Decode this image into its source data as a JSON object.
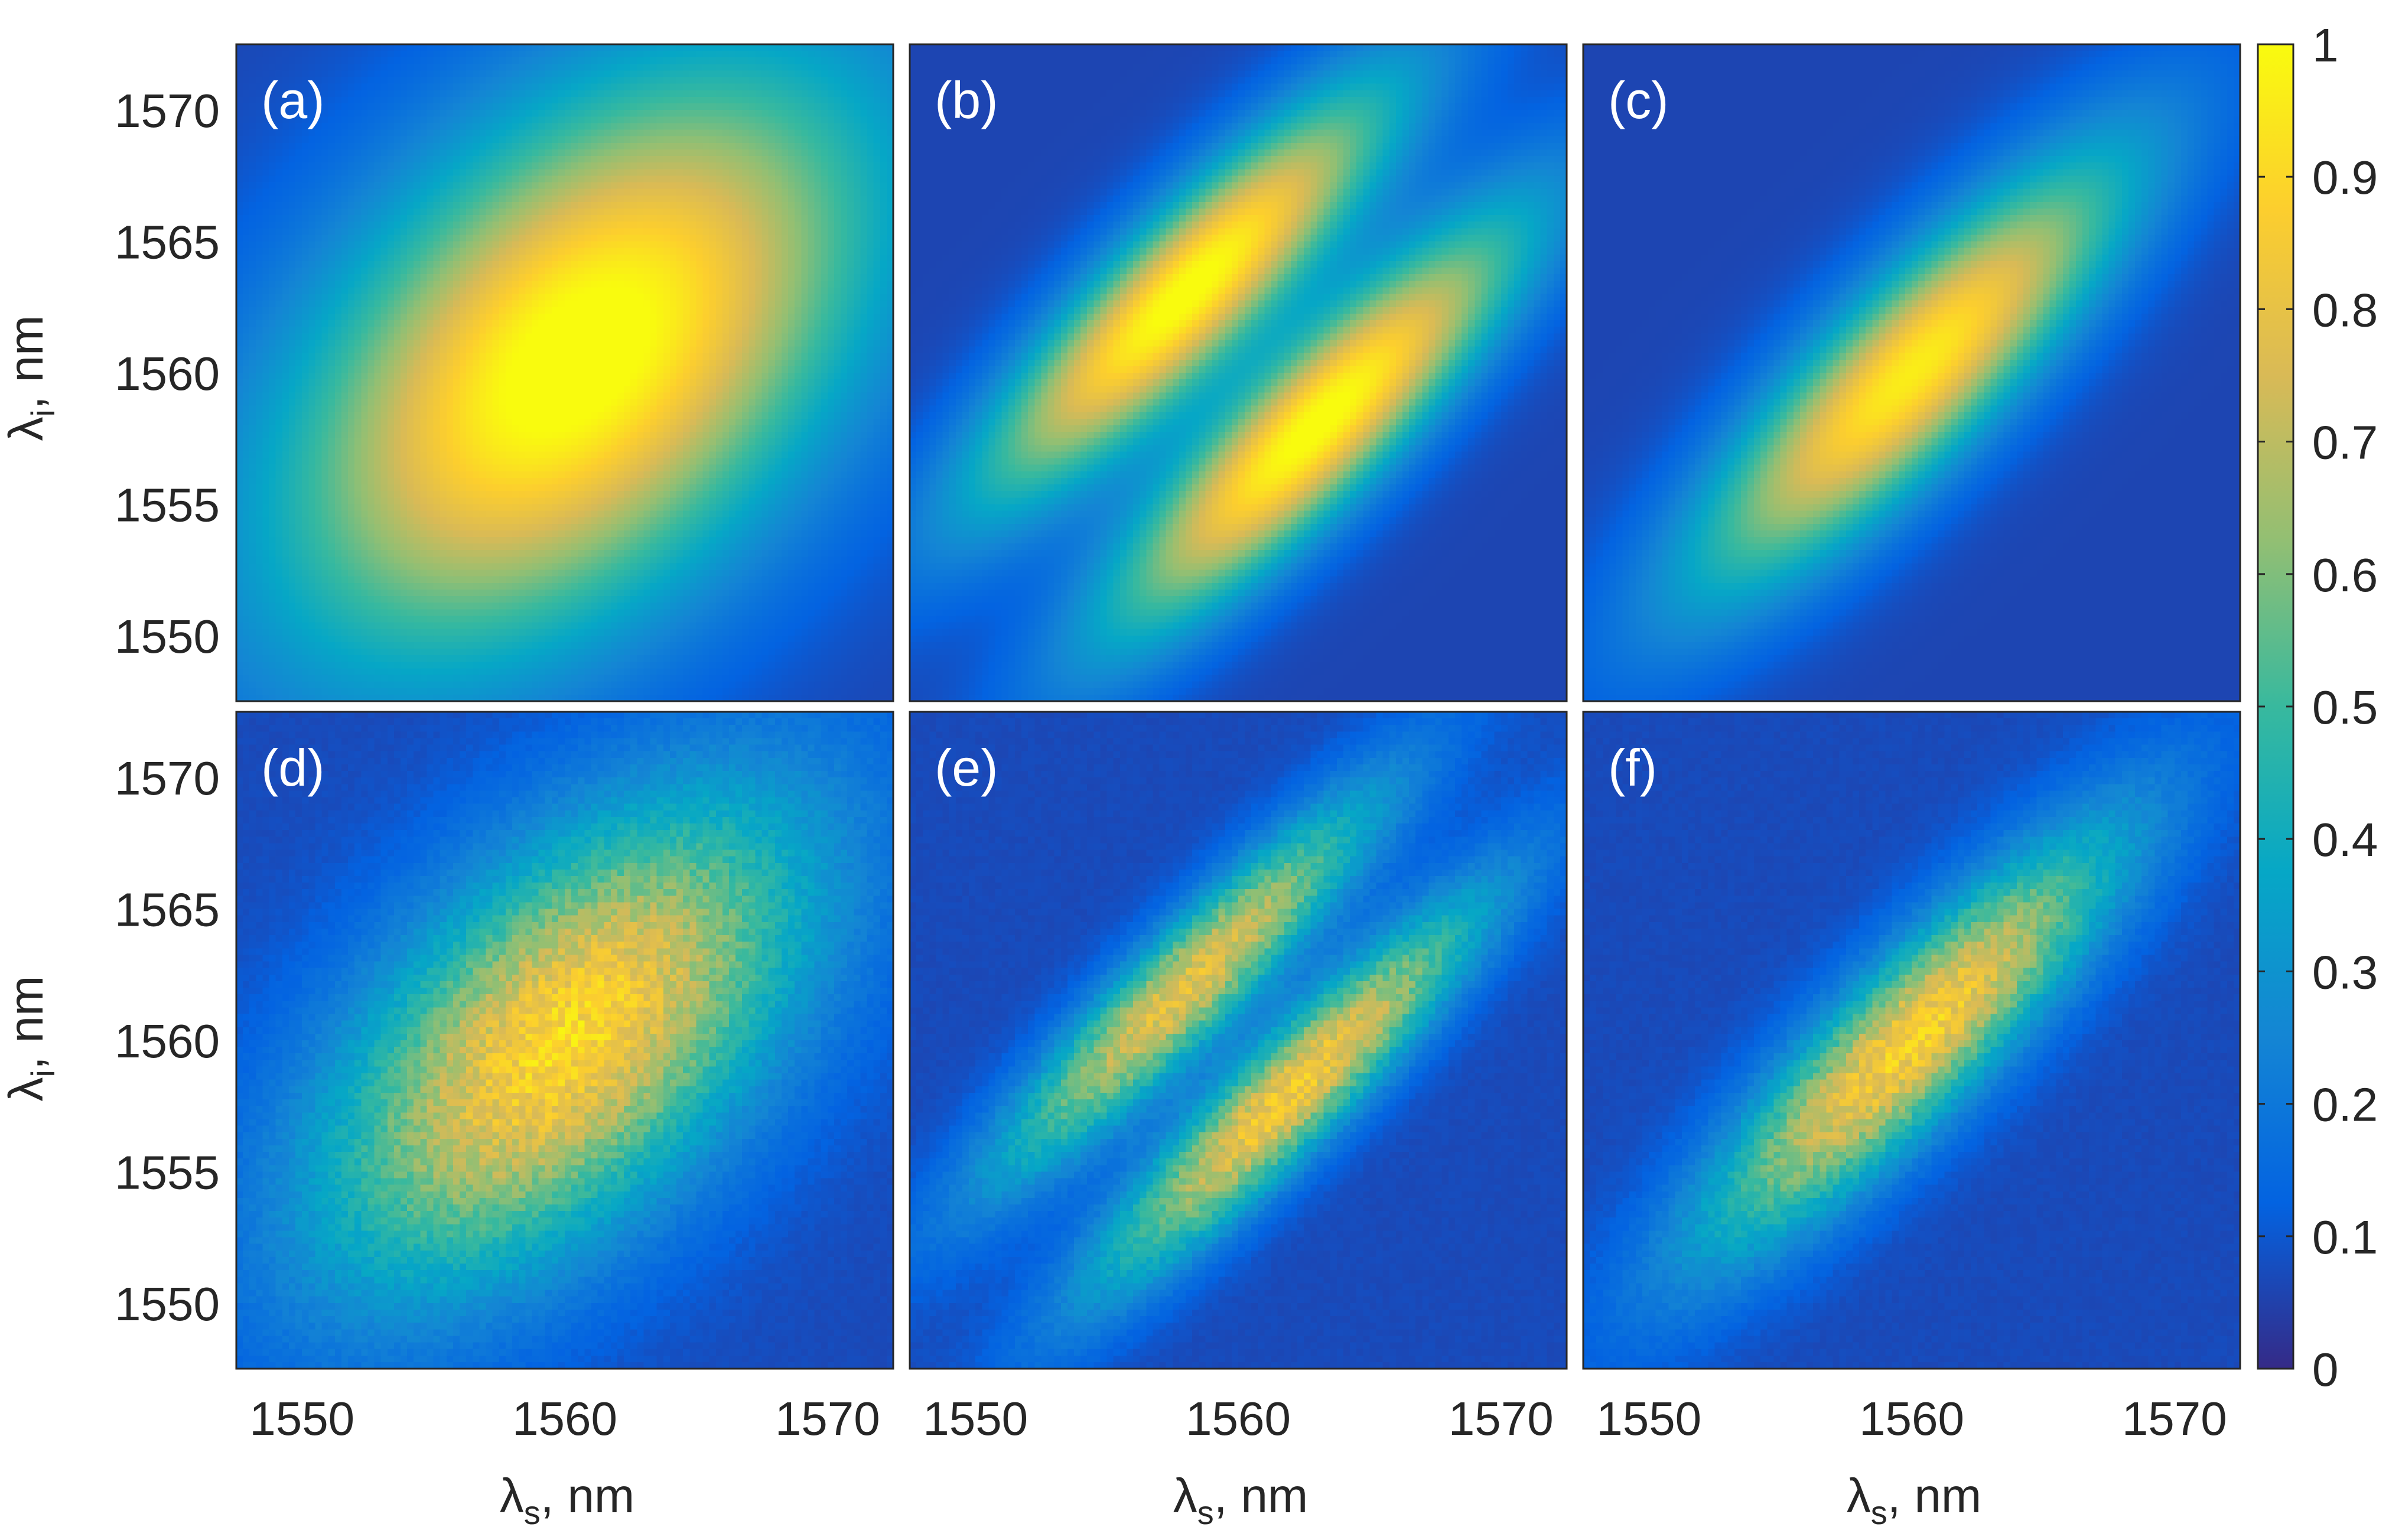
{
  "figure": {
    "xlabel": "λs, nm",
    "ylabel": "λi, nm",
    "colorbar_label": ""
  },
  "chart_data": [
    {
      "panel": "(a)",
      "type": "heatmap",
      "xlim": [
        1547.5,
        1572.5
      ],
      "ylim": [
        1547.5,
        1572.5
      ],
      "x_ticks": [
        1550,
        1560,
        1570
      ],
      "y_ticks": [
        1550,
        1555,
        1560,
        1565,
        1570
      ],
      "data_source": "theory",
      "lobes": [
        {
          "center": [
            1560.5,
            1560.5
          ],
          "peak": 1.0,
          "sigma_diag": 9.5,
          "sigma_anti": 5.6
        }
      ],
      "background": 0.06
    },
    {
      "panel": "(b)",
      "type": "heatmap",
      "xlim": [
        1547.5,
        1572.5
      ],
      "ylim": [
        1547.5,
        1572.5
      ],
      "x_ticks": [
        1550,
        1560,
        1570
      ],
      "y_ticks": [
        1550,
        1555,
        1560,
        1565,
        1570
      ],
      "data_source": "theory",
      "lobes": [
        {
          "center": [
            1558.0,
            1563.0
          ],
          "peak": 0.96,
          "sigma_diag": 7.5,
          "sigma_anti": 1.9
        },
        {
          "center": [
            1563.0,
            1558.0
          ],
          "peak": 0.96,
          "sigma_diag": 7.5,
          "sigma_anti": 1.9
        }
      ],
      "background": 0.06
    },
    {
      "panel": "(c)",
      "type": "heatmap",
      "xlim": [
        1547.5,
        1572.5
      ],
      "ylim": [
        1547.5,
        1572.5
      ],
      "x_ticks": [
        1550,
        1560,
        1570
      ],
      "y_ticks": [
        1550,
        1555,
        1560,
        1565,
        1570
      ],
      "data_source": "theory",
      "lobes": [
        {
          "center": [
            1560.0,
            1560.0
          ],
          "peak": 0.9,
          "sigma_diag": 7.8,
          "sigma_anti": 2.2
        }
      ],
      "background": 0.06
    },
    {
      "panel": "(d)",
      "type": "heatmap",
      "xlim": [
        1547.5,
        1572.5
      ],
      "ylim": [
        1547.5,
        1572.5
      ],
      "x_ticks": [
        1550,
        1560,
        1570
      ],
      "y_ticks": [
        1550,
        1555,
        1560,
        1565,
        1570
      ],
      "data_source": "measured",
      "lobes": [
        {
          "center": [
            1560.0,
            1560.0
          ],
          "peak": 0.82,
          "sigma_diag": 8.0,
          "sigma_anti": 4.2
        }
      ],
      "background": 0.07
    },
    {
      "panel": "(e)",
      "type": "heatmap",
      "xlim": [
        1547.5,
        1572.5
      ],
      "ylim": [
        1547.5,
        1572.5
      ],
      "x_ticks": [
        1550,
        1560,
        1570
      ],
      "y_ticks": [
        1550,
        1555,
        1560,
        1565,
        1570
      ],
      "data_source": "measured",
      "lobes": [
        {
          "center": [
            1558.0,
            1562.0
          ],
          "peak": 0.72,
          "sigma_diag": 7.0,
          "sigma_anti": 1.4
        },
        {
          "center": [
            1562.0,
            1558.0
          ],
          "peak": 0.78,
          "sigma_diag": 7.0,
          "sigma_anti": 1.4
        }
      ],
      "background": 0.07
    },
    {
      "panel": "(f)",
      "type": "heatmap",
      "xlim": [
        1547.5,
        1572.5
      ],
      "ylim": [
        1547.5,
        1572.5
      ],
      "x_ticks": [
        1550,
        1560,
        1570
      ],
      "y_ticks": [
        1550,
        1555,
        1560,
        1565,
        1570
      ],
      "data_source": "measured",
      "lobes": [
        {
          "center": [
            1560.0,
            1560.0
          ],
          "peak": 0.8,
          "sigma_diag": 7.5,
          "sigma_anti": 1.9
        }
      ],
      "background": 0.07
    }
  ],
  "colorbar": {
    "colormap": "parula",
    "range": [
      0,
      1
    ],
    "ticks": [
      0,
      0.1,
      0.2,
      0.3,
      0.4,
      0.5,
      0.6,
      0.7,
      0.8,
      0.9,
      1
    ],
    "tick_labels": [
      "0",
      "0.1",
      "0.2",
      "0.3",
      "0.4",
      "0.5",
      "0.6",
      "0.7",
      "0.8",
      "0.9",
      "1"
    ],
    "colors": [
      "#352a87",
      "#0363e1",
      "#1485d4",
      "#06a7c6",
      "#38b99e",
      "#92bf73",
      "#d9ba56",
      "#fcce2e",
      "#f9fb0e"
    ]
  }
}
